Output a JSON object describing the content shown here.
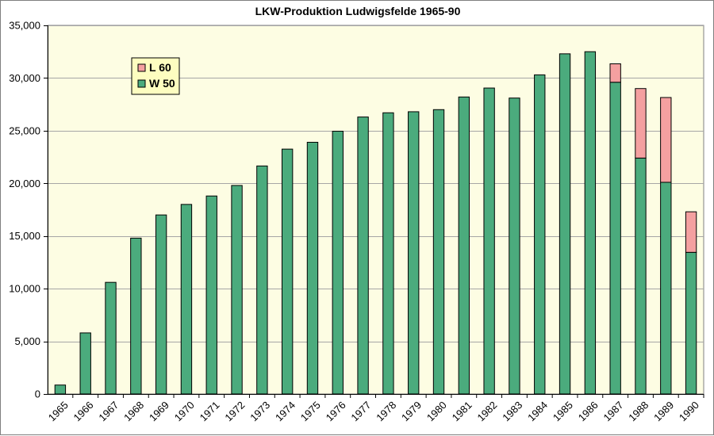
{
  "chart_data": {
    "type": "bar",
    "stacked": true,
    "title": "LKW-Produktion Ludwigsfelde 1965-90",
    "xlabel": "",
    "ylabel": "",
    "ylim": [
      0,
      35000
    ],
    "y_ticks": [
      0,
      5000,
      10000,
      15000,
      20000,
      25000,
      30000,
      35000
    ],
    "y_tick_labels": [
      "0",
      "5,000",
      "10,000",
      "15,000",
      "20,000",
      "25,000",
      "30,000",
      "35,000"
    ],
    "grid": true,
    "legend_position": "top-left",
    "categories": [
      "1965",
      "1966",
      "1967",
      "1968",
      "1969",
      "1970",
      "1971",
      "1972",
      "1973",
      "1974",
      "1975",
      "1976",
      "1977",
      "1978",
      "1979",
      "1980",
      "1981",
      "1982",
      "1983",
      "1984",
      "1985",
      "1986",
      "1987",
      "1988",
      "1989",
      "1990"
    ],
    "series": [
      {
        "name": "W 50",
        "color": "#4bab7d",
        "values": [
          850,
          5800,
          10600,
          14800,
          17000,
          18000,
          18800,
          19800,
          21650,
          23250,
          23900,
          24950,
          26300,
          26700,
          26800,
          27000,
          28200,
          29050,
          28100,
          30300,
          32300,
          32500,
          29600,
          22400,
          20100,
          13450
        ]
      },
      {
        "name": "L 60",
        "color": "#f4a0a0",
        "values": [
          0,
          0,
          0,
          0,
          0,
          0,
          0,
          0,
          0,
          0,
          0,
          0,
          0,
          0,
          0,
          0,
          0,
          0,
          0,
          0,
          0,
          0,
          1750,
          6600,
          8050,
          3850
        ]
      }
    ]
  },
  "colors": {
    "plot_background": "#fdfde3",
    "gridline": "#a6a6a6",
    "legend_background": "#fdfdc0"
  }
}
